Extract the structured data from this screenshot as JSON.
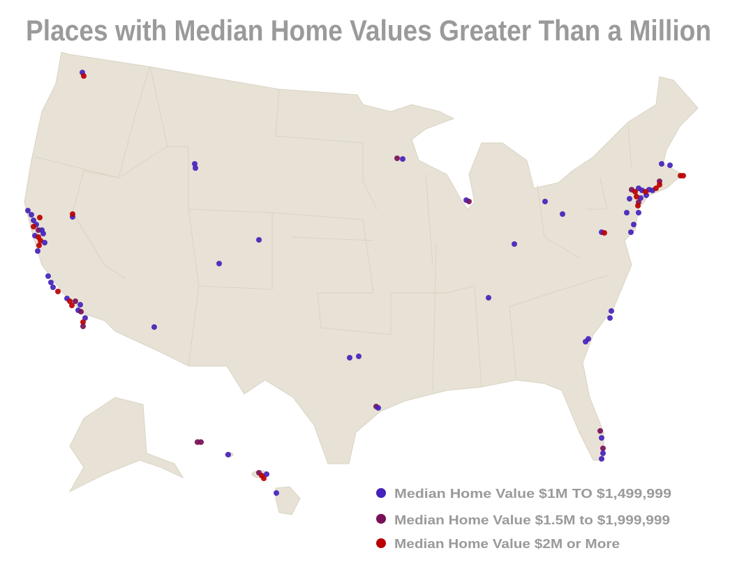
{
  "title": "Places with Median Home Values Greater Than a Million",
  "colors": {
    "land": "#e7e2d5",
    "tier1": "#4422bb",
    "tier2": "#7a1058",
    "tier3": "#bb0000",
    "text": "#9a9a9a"
  },
  "legend": [
    {
      "label": "Median Home Value $1M TO $1,499,999",
      "color": "#4422bb"
    },
    {
      "label": "Median Home Value $1.5M to $1,999,999",
      "color": "#7a1058"
    },
    {
      "label": "Median Home Value $2M or More",
      "color": "#bb0000"
    }
  ]
}
